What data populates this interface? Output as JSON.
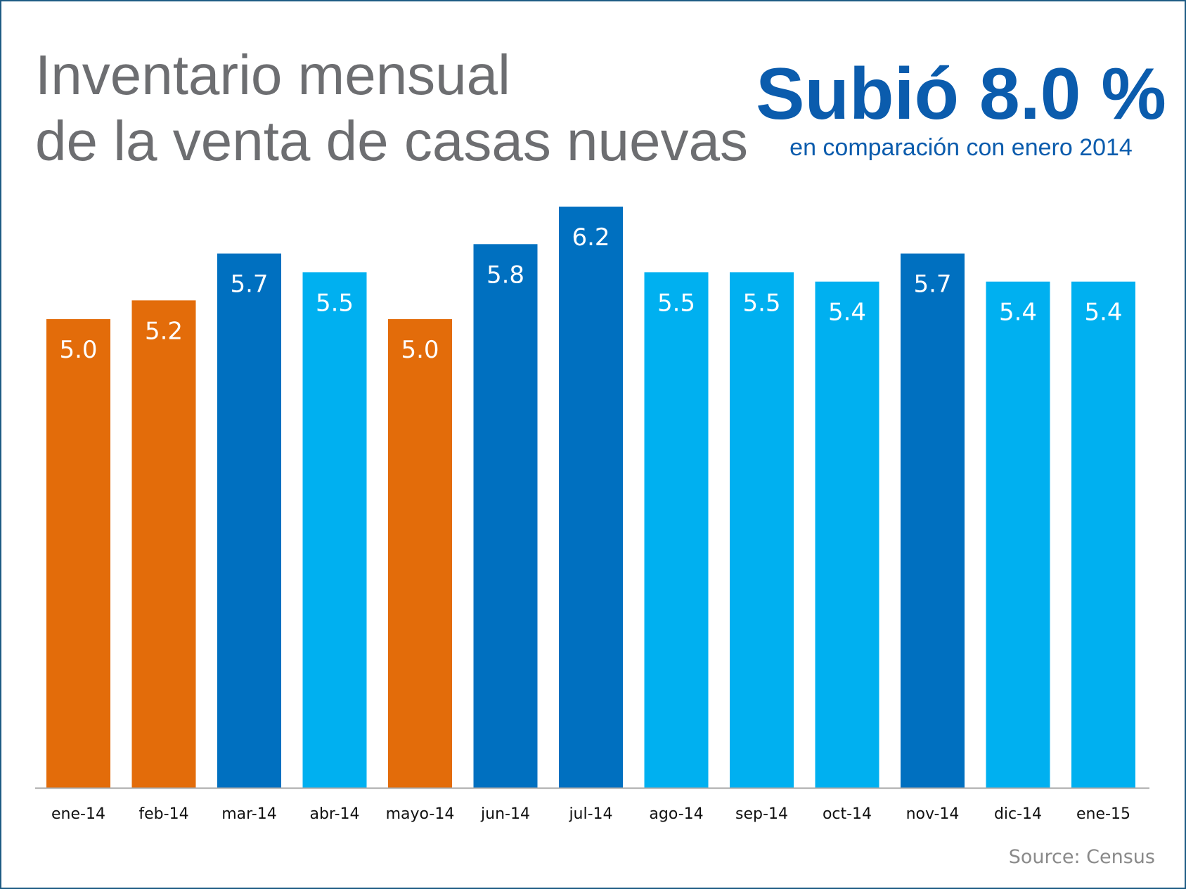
{
  "chart_data": {
    "type": "bar",
    "title_lines": [
      "Inventario mensual",
      "de la venta de casas nuevas"
    ],
    "headline": "Subió 8.0 %",
    "subheadline": "en comparación con enero 2014",
    "source": "Source: Census",
    "xlabel": "",
    "ylabel": "",
    "ylim": [
      0,
      6.2
    ],
    "grid": false,
    "legend": "none",
    "categories": [
      "ene-14",
      "feb-14",
      "mar-14",
      "abr-14",
      "mayo-14",
      "jun-14",
      "jul-14",
      "ago-14",
      "sep-14",
      "oct-14",
      "nov-14",
      "dic-14",
      "ene-15"
    ],
    "values": [
      5.0,
      5.2,
      5.7,
      5.5,
      5.0,
      5.8,
      6.2,
      5.5,
      5.5,
      5.4,
      5.7,
      5.4,
      5.4
    ],
    "value_labels": [
      "5.0",
      "5.2",
      "5.7",
      "5.5",
      "5.0",
      "5.8",
      "6.2",
      "5.5",
      "5.5",
      "5.4",
      "5.7",
      "5.4",
      "5.4"
    ],
    "bar_colors": [
      "#e36c0a",
      "#e36c0a",
      "#0070c0",
      "#00b0f0",
      "#e36c0a",
      "#0070c0",
      "#0070c0",
      "#00b0f0",
      "#00b0f0",
      "#00b0f0",
      "#0070c0",
      "#00b0f0",
      "#00b0f0"
    ]
  },
  "colors": {
    "title": "#6d6e71",
    "headline": "#0b5cad",
    "subheadline": "#0b5cad",
    "axis": "#a6a6a6",
    "source": "#8a8a8a"
  }
}
